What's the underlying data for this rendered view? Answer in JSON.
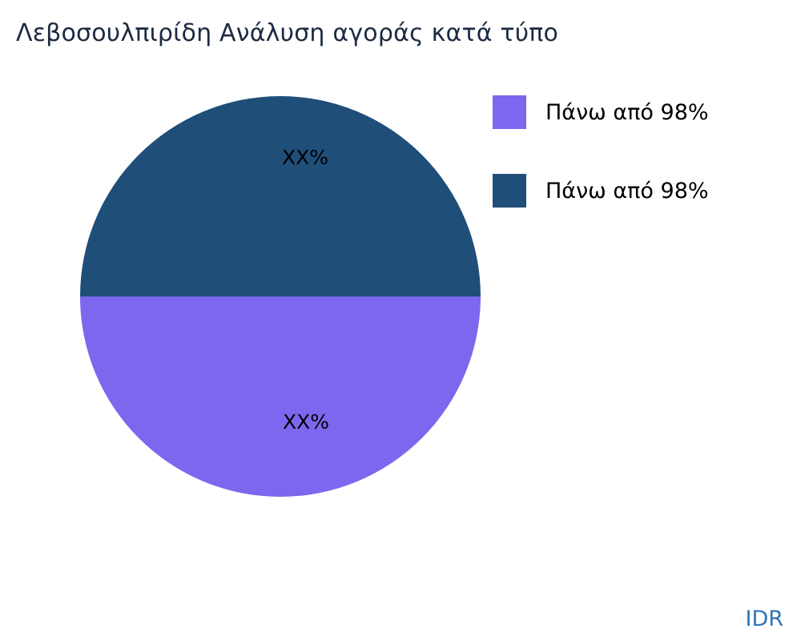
{
  "title": "Λεβοσουλπιρίδη Ανάλυση αγοράς κατά τύπο",
  "watermark": "IDR",
  "colors": {
    "slice_bottom": "#7B68EE",
    "slice_top": "#1F4E79",
    "title_text": "#1b2a41",
    "watermark_text": "#2e74b5",
    "background": "#ffffff"
  },
  "chart_data": {
    "type": "pie",
    "title": "Λεβοσουλπιρίδη Ανάλυση αγοράς κατά τύπο",
    "legend_position": "right",
    "slices": [
      {
        "label": "Πάνω από 98%",
        "value": 50,
        "display": "XX%",
        "color": "#7B68EE",
        "position": "bottom"
      },
      {
        "label": "Πάνω από 98%",
        "value": 50,
        "display": "XX%",
        "color": "#1F4E79",
        "position": "top"
      }
    ]
  },
  "legend": {
    "items": [
      {
        "label": "Πάνω από 98%",
        "color": "#7B68EE"
      },
      {
        "label": "Πάνω από 98%",
        "color": "#1F4E79"
      }
    ]
  }
}
